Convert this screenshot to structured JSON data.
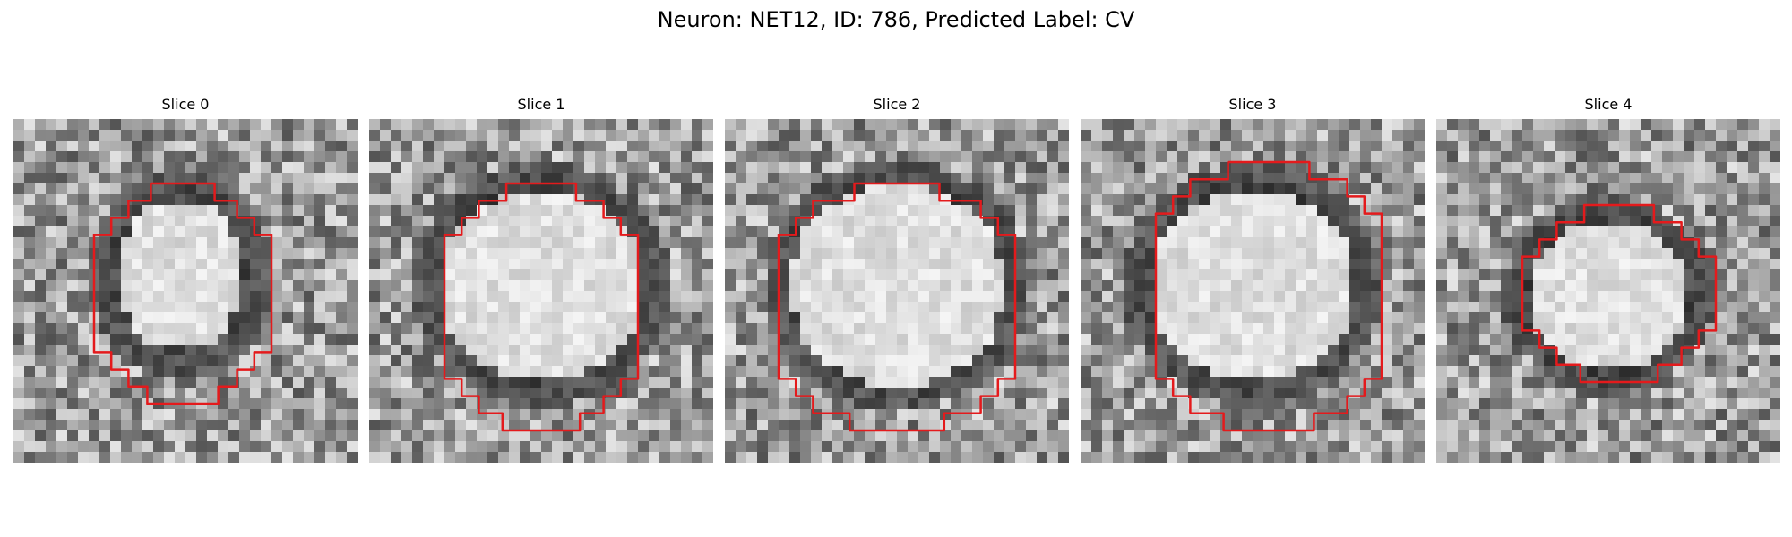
{
  "figure": {
    "title": "Neuron: NET12, ID: 786, Predicted Label: CV"
  },
  "panels": [
    {
      "title": "Slice 0"
    },
    {
      "title": "Slice 1"
    },
    {
      "title": "Slice 2"
    },
    {
      "title": "Slice 3"
    },
    {
      "title": "Slice 4"
    }
  ],
  "colors": {
    "contour": "#e41a1c",
    "dark_tone": "#202020",
    "light_tone": "#e8e8e8"
  }
}
